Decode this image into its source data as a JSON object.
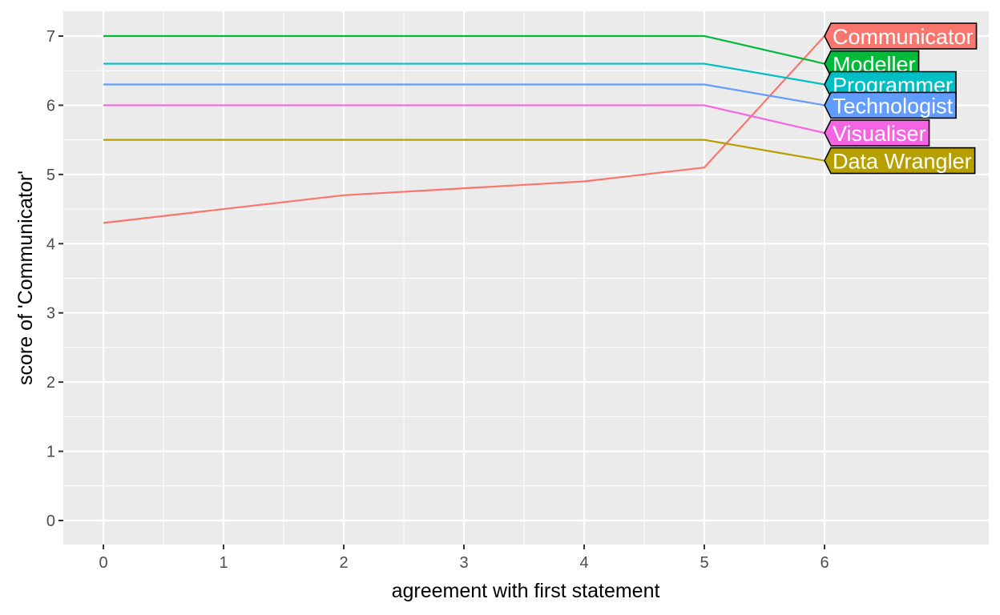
{
  "chart_data": {
    "type": "line",
    "title": "",
    "xlabel": "agreement with first statement",
    "ylabel": "score of 'Communicator'",
    "xlim": [
      0,
      6
    ],
    "ylim": [
      0,
      7
    ],
    "x_ticks": [
      "0",
      "1",
      "2",
      "3",
      "4",
      "5",
      "6"
    ],
    "y_ticks": [
      "0",
      "1",
      "2",
      "3",
      "4",
      "5",
      "6",
      "7"
    ],
    "grid": true,
    "legend": "direct line-end labels at right",
    "series": [
      {
        "name": "Communicator",
        "color": "#F8766D",
        "x": [
          0,
          1,
          2,
          3,
          4,
          5,
          6
        ],
        "y": [
          4.3,
          4.5,
          4.7,
          4.8,
          4.9,
          5.1,
          7.0
        ]
      },
      {
        "name": "Modeller",
        "color": "#00BA38",
        "x": [
          0,
          1,
          2,
          3,
          4,
          5,
          6
        ],
        "y": [
          7.0,
          7.0,
          7.0,
          7.0,
          7.0,
          7.0,
          6.6
        ]
      },
      {
        "name": "Programmer",
        "color": "#00BFC4",
        "x": [
          0,
          1,
          2,
          3,
          4,
          5,
          6
        ],
        "y": [
          6.6,
          6.6,
          6.6,
          6.6,
          6.6,
          6.6,
          6.3
        ]
      },
      {
        "name": "Technologist",
        "color": "#619CFF",
        "x": [
          0,
          1,
          2,
          3,
          4,
          5,
          6
        ],
        "y": [
          6.3,
          6.3,
          6.3,
          6.3,
          6.3,
          6.3,
          6.0
        ]
      },
      {
        "name": "Visualiser",
        "color": "#F564E3",
        "x": [
          0,
          1,
          2,
          3,
          4,
          5,
          6
        ],
        "y": [
          6.0,
          6.0,
          6.0,
          6.0,
          6.0,
          6.0,
          5.6
        ]
      },
      {
        "name": "Data Wrangler",
        "color": "#B79F00",
        "x": [
          0,
          1,
          2,
          3,
          4,
          5,
          6
        ],
        "y": [
          5.5,
          5.5,
          5.5,
          5.5,
          5.5,
          5.5,
          5.2
        ]
      }
    ]
  }
}
